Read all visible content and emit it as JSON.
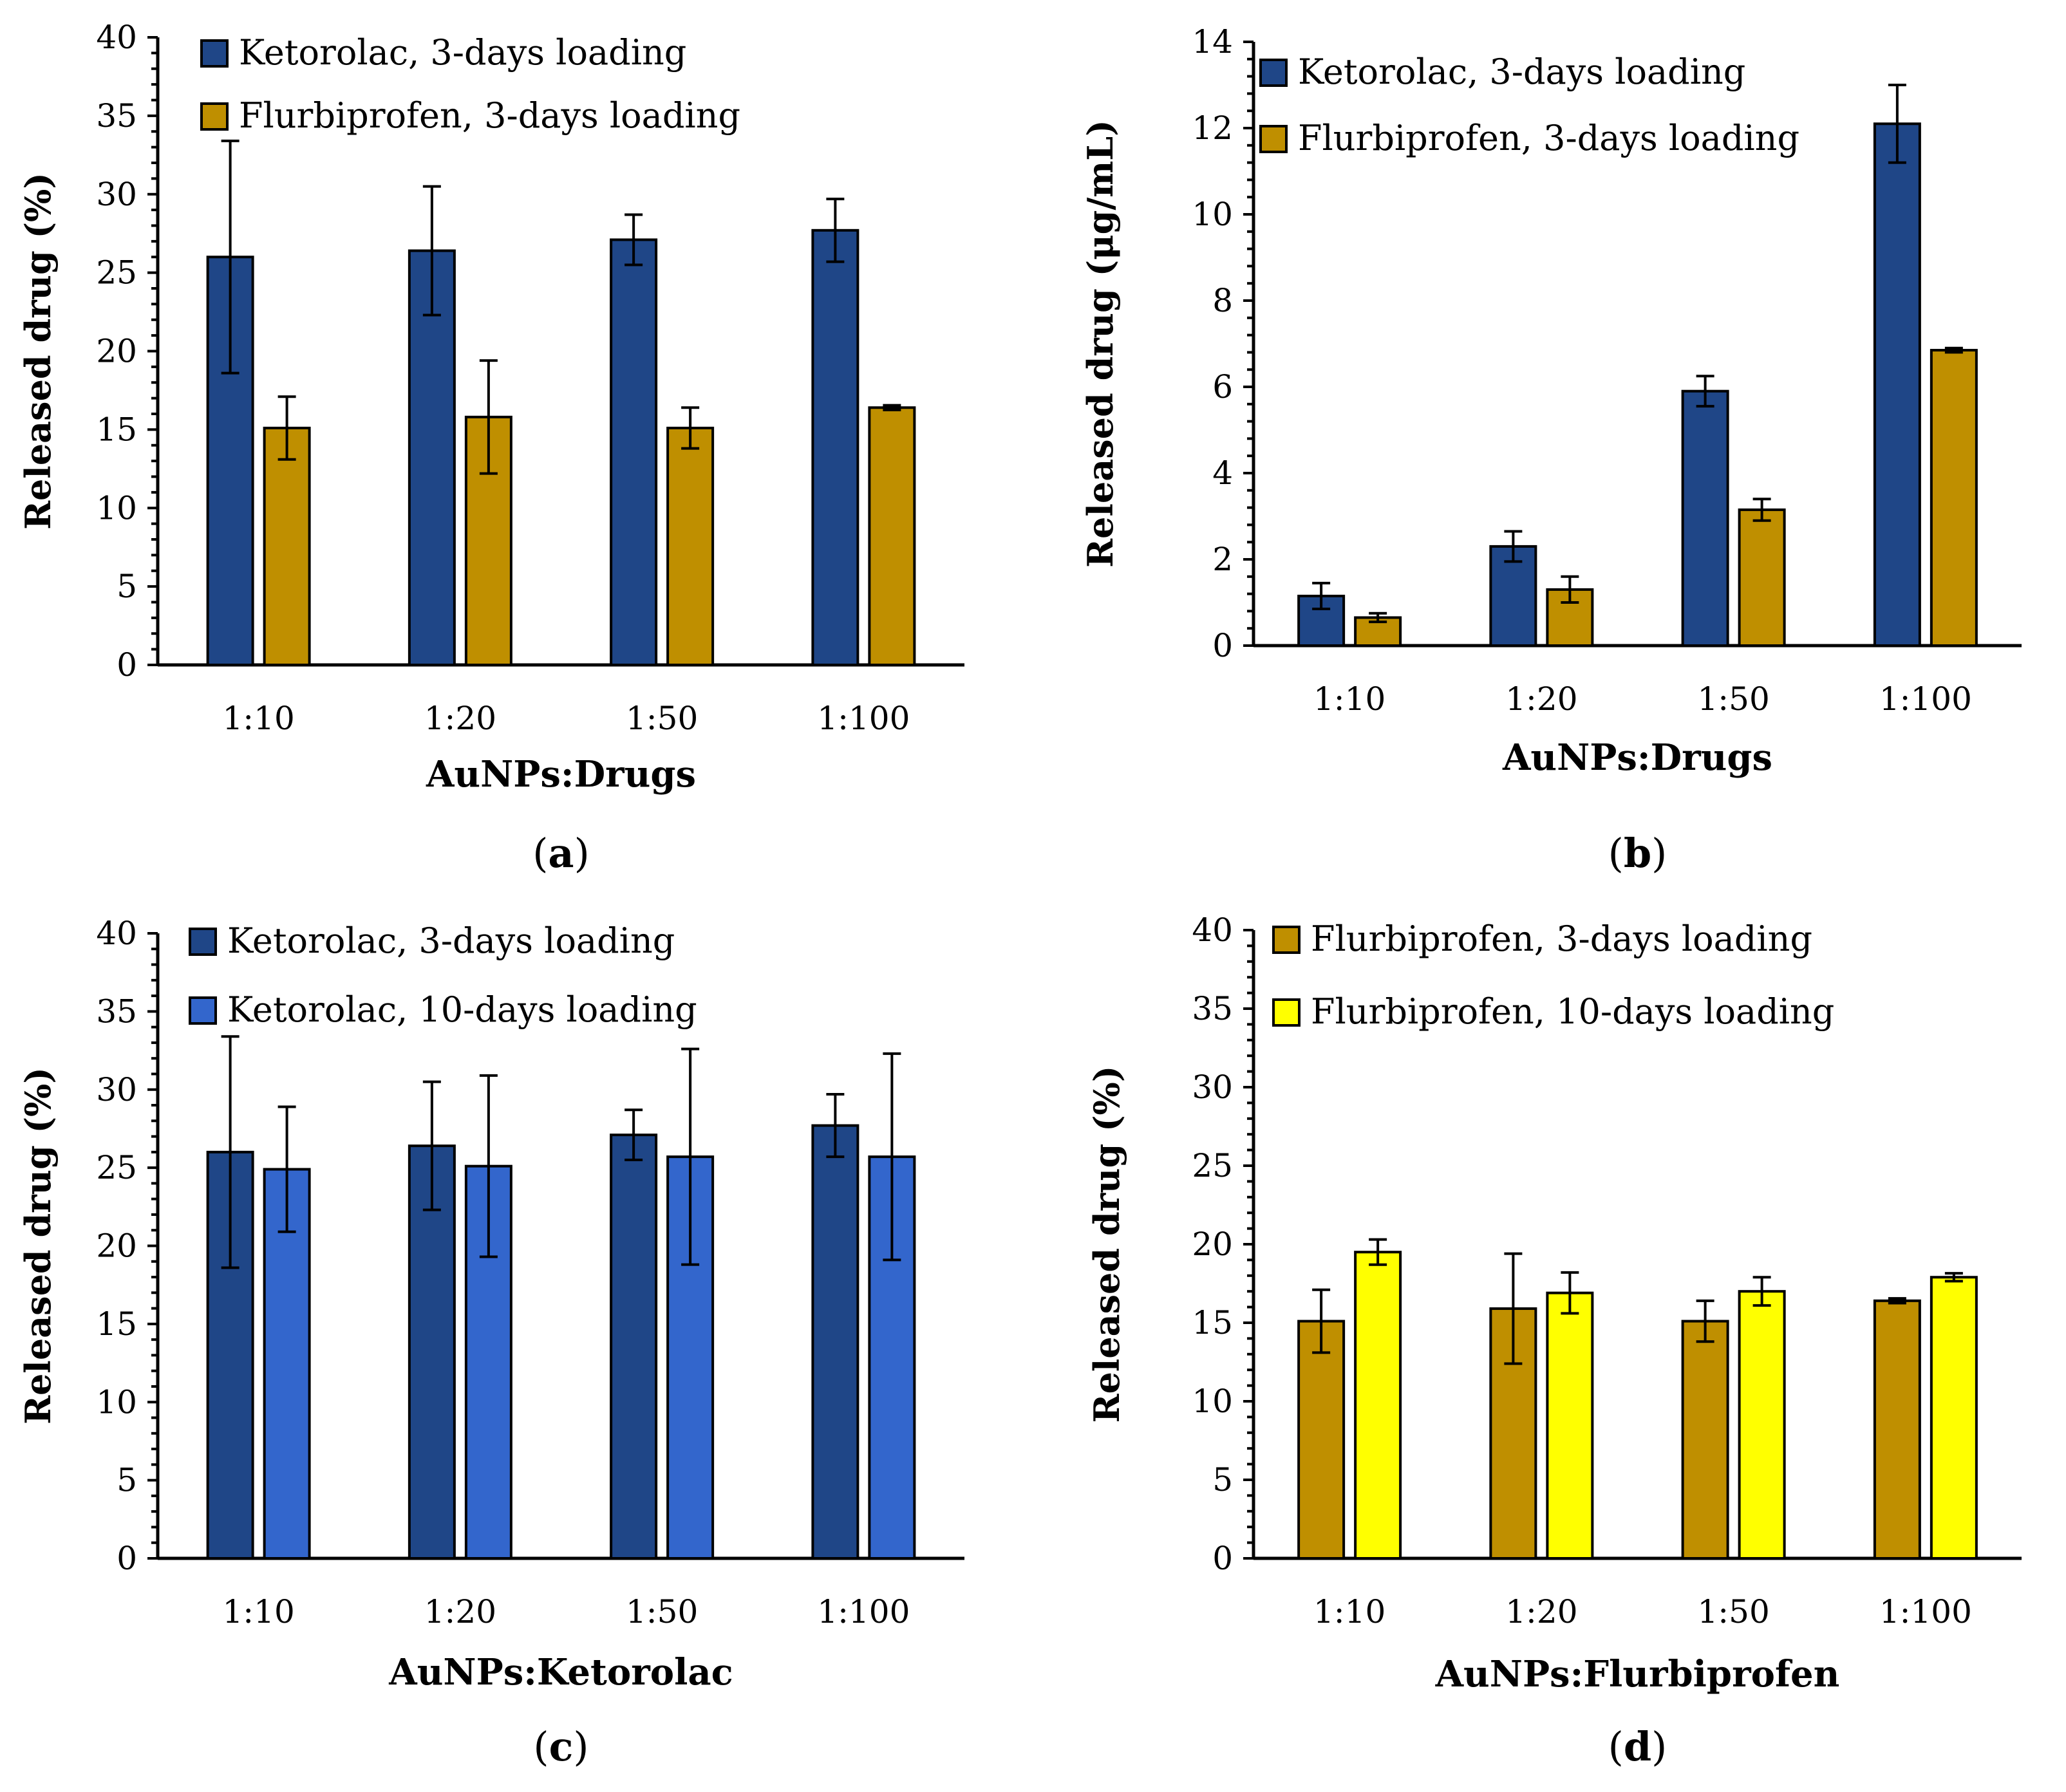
{
  "figure": {
    "panels": [
      "a",
      "b",
      "c",
      "d"
    ]
  },
  "chart_data": [
    {
      "id": "a",
      "type": "bar",
      "panel_label": "a",
      "xlabel": "AuNPs:Drugs",
      "ylabel": "Released drug (%)",
      "ylim": [
        0,
        40
      ],
      "yticks": [
        0,
        5,
        10,
        15,
        20,
        25,
        30,
        35,
        40
      ],
      "categories": [
        "1:10",
        "1:20",
        "1:50",
        "1:100"
      ],
      "legend_position": "top-left",
      "series": [
        {
          "name": "Ketorolac, 3-days loading",
          "color": "#1f4687",
          "values": [
            26.0,
            26.4,
            27.1,
            27.7
          ],
          "errors": [
            7.4,
            4.1,
            1.6,
            2.0
          ]
        },
        {
          "name": "Flurbiprofen, 3-days loading",
          "color": "#bf8f00",
          "values": [
            15.1,
            15.8,
            15.1,
            16.4
          ],
          "errors": [
            2.0,
            3.6,
            1.3,
            0.15
          ]
        }
      ]
    },
    {
      "id": "b",
      "type": "bar",
      "panel_label": "b",
      "xlabel": "AuNPs:Drugs",
      "ylabel": "Released drug (μg/mL)",
      "ylim": [
        0,
        14
      ],
      "yticks": [
        0,
        2,
        4,
        6,
        8,
        10,
        12,
        14
      ],
      "categories": [
        "1:10",
        "1:20",
        "1:50",
        "1:100"
      ],
      "legend_position": "top-left",
      "series": [
        {
          "name": "Ketorolac, 3-days loading",
          "color": "#1f4687",
          "values": [
            1.15,
            2.3,
            5.9,
            12.1
          ],
          "errors": [
            0.3,
            0.35,
            0.35,
            0.9
          ]
        },
        {
          "name": "Flurbiprofen, 3-days loading",
          "color": "#bf8f00",
          "values": [
            0.65,
            1.3,
            3.15,
            6.85
          ],
          "errors": [
            0.1,
            0.3,
            0.25,
            0.05
          ]
        }
      ]
    },
    {
      "id": "c",
      "type": "bar",
      "panel_label": "c",
      "xlabel": "AuNPs:Ketorolac",
      "ylabel": "Released drug (%)",
      "ylim": [
        0,
        40
      ],
      "yticks": [
        0,
        5,
        10,
        15,
        20,
        25,
        30,
        35,
        40
      ],
      "categories": [
        "1:10",
        "1:20",
        "1:50",
        "1:100"
      ],
      "legend_position": "top-left",
      "series": [
        {
          "name": "Ketorolac, 3-days loading",
          "color": "#1f4687",
          "values": [
            26.0,
            26.4,
            27.1,
            27.7
          ],
          "errors": [
            7.4,
            4.1,
            1.6,
            2.0
          ]
        },
        {
          "name": "Ketorolac, 10-days loading",
          "color": "#3366cc",
          "values": [
            24.9,
            25.1,
            25.7,
            25.7
          ],
          "errors": [
            4.0,
            5.8,
            6.9,
            6.6
          ]
        }
      ]
    },
    {
      "id": "d",
      "type": "bar",
      "panel_label": "d",
      "xlabel": "AuNPs:Flurbiprofen",
      "ylabel": "Released drug (%)",
      "ylim": [
        0,
        40
      ],
      "yticks": [
        0,
        5,
        10,
        15,
        20,
        25,
        30,
        35,
        40
      ],
      "categories": [
        "1:10",
        "1:20",
        "1:50",
        "1:100"
      ],
      "legend_position": "top-left",
      "series": [
        {
          "name": "Flurbiprofen, 3-days loading",
          "color": "#bf8f00",
          "values": [
            15.1,
            15.9,
            15.1,
            16.4
          ],
          "errors": [
            2.0,
            3.5,
            1.3,
            0.15
          ]
        },
        {
          "name": "Flurbiprofen, 10-days loading",
          "color": "#ffff00",
          "values": [
            19.5,
            16.9,
            17.0,
            17.9
          ],
          "errors": [
            0.8,
            1.3,
            0.9,
            0.25
          ]
        }
      ]
    }
  ]
}
